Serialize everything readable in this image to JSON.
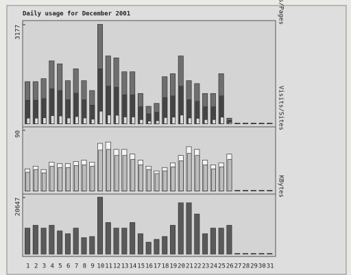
{
  "chart_data": [
    {
      "type": "bar",
      "title": "Daily usage for December 2001",
      "ylabel": "Hits/Files/Pages",
      "ylim": [
        0,
        3177
      ],
      "yticks": [
        3177
      ],
      "series": [
        {
          "name": "Hits",
          "color": "#6f6f6f",
          "values": [
            1334,
            1334,
            1430,
            2002,
            1906,
            1366,
            1747,
            1366,
            1048,
            3177,
            2160,
            2097,
            1652,
            1652,
            953,
            540,
            635,
            1493,
            1589,
            2160,
            1366,
            1271,
            953,
            953,
            1589,
            159,
            0,
            0,
            0,
            0,
            0
          ]
        },
        {
          "name": "Files",
          "color": "#454545",
          "values": [
            734,
            734,
            786,
            1101,
            1048,
            751,
            961,
            751,
            576,
            1747,
            1188,
            1153,
            909,
            909,
            524,
            297,
            349,
            821,
            874,
            1188,
            751,
            699,
            524,
            524,
            874,
            87,
            0,
            0,
            0,
            0,
            0
          ]
        },
        {
          "name": "Pages",
          "color": "#dcdcdc",
          "values": [
            160,
            160,
            172,
            240,
            229,
            164,
            210,
            164,
            126,
            381,
            259,
            252,
            198,
            198,
            114,
            65,
            76,
            179,
            191,
            259,
            164,
            153,
            114,
            114,
            191,
            19,
            0,
            0,
            0,
            0,
            0
          ]
        }
      ]
    },
    {
      "type": "bar",
      "ylabel": "Visits/Sites",
      "ylim": [
        0,
        90
      ],
      "yticks": [
        90
      ],
      "series": [
        {
          "name": "Visits",
          "color": "#f4f4f4",
          "values": [
            32,
            36,
            31,
            42,
            40,
            40,
            43,
            45,
            42,
            70,
            72,
            61,
            61,
            54,
            45,
            36,
            29,
            34,
            41,
            52,
            65,
            61,
            45,
            38,
            41,
            54,
            0,
            0,
            0,
            0,
            0
          ]
        },
        {
          "name": "Sites",
          "color": "#bdbdbd",
          "values": [
            27,
            31,
            26,
            36,
            34,
            34,
            37,
            38,
            36,
            60,
            61,
            52,
            52,
            46,
            38,
            31,
            25,
            29,
            35,
            44,
            55,
            52,
            38,
            32,
            35,
            46,
            0,
            0,
            0,
            0,
            0
          ]
        }
      ]
    },
    {
      "type": "bar",
      "ylabel": "KBytes",
      "ylim": [
        0,
        20647
      ],
      "yticks": [
        20647
      ],
      "categories": [
        "1",
        "2",
        "3",
        "4",
        "5",
        "6",
        "7",
        "8",
        "9",
        "10",
        "11",
        "12",
        "13",
        "14",
        "15",
        "16",
        "17",
        "18",
        "19",
        "20",
        "21",
        "22",
        "23",
        "24",
        "25",
        "26",
        "27",
        "28",
        "29",
        "30",
        "31"
      ],
      "series": [
        {
          "name": "KBytes",
          "color": "#5a5a5a",
          "values": [
            9291,
            10324,
            9291,
            10324,
            8259,
            7226,
            9291,
            5781,
            6194,
            20647,
            11356,
            9291,
            9291,
            11356,
            7226,
            4129,
            5162,
            6194,
            10324,
            18582,
            18582,
            14453,
            7226,
            9291,
            9291,
            10324,
            0,
            0,
            0,
            0,
            0
          ]
        }
      ]
    }
  ]
}
